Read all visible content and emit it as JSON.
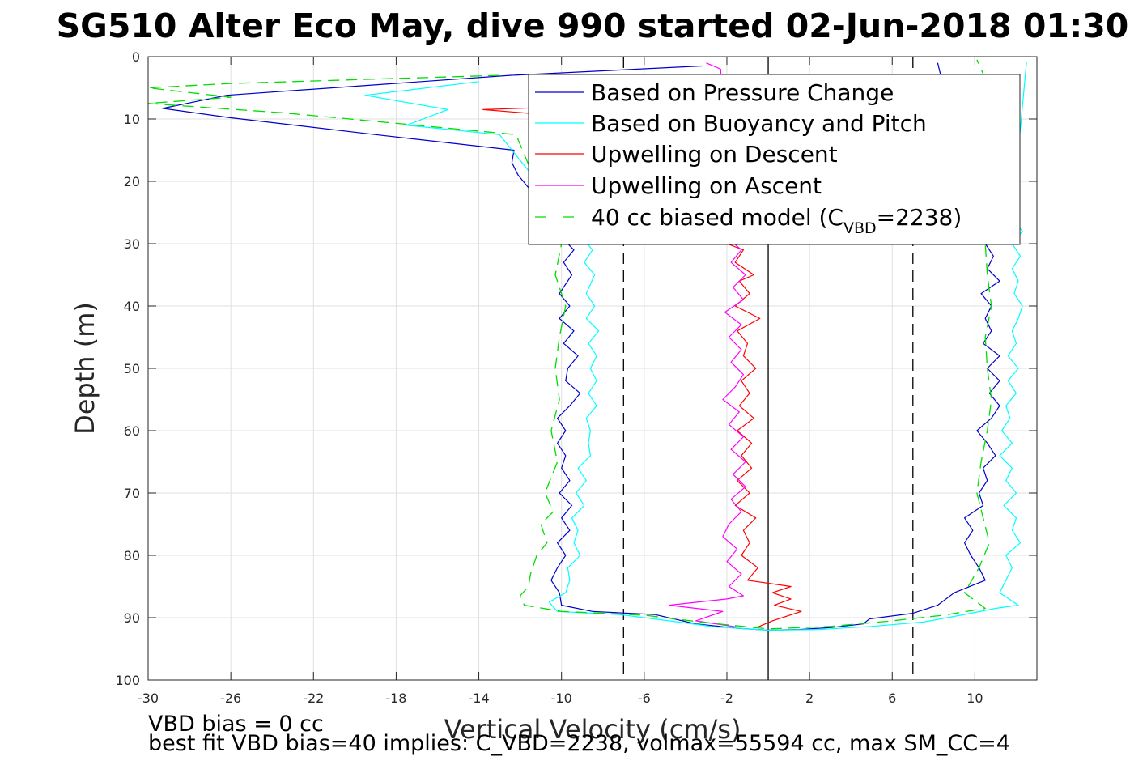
{
  "chart_data": {
    "type": "line",
    "title": "SG510 Alter Eco May, dive 990 started 02-Jun-2018 01:30",
    "xlabel": "Vertical Velocity (cm/s)",
    "ylabel": "Depth (m)",
    "xlim": [
      -30,
      13
    ],
    "ylim": [
      0,
      100
    ],
    "y_reversed": true,
    "grid": true,
    "legend_position": "top-right",
    "xticks": [
      -30,
      -26,
      -22,
      -18,
      -14,
      -10,
      -6,
      -2,
      2,
      6,
      10
    ],
    "xtick_labels": [
      "-30",
      "-26",
      "-22",
      "-18",
      "-14",
      "-10",
      "-6",
      "-2",
      "2",
      "6",
      "10"
    ],
    "yticks": [
      0,
      10,
      20,
      30,
      40,
      50,
      60,
      70,
      80,
      90,
      100
    ],
    "ytick_labels": [
      "0",
      "10",
      "20",
      "30",
      "40",
      "50",
      "60",
      "70",
      "80",
      "90",
      "100"
    ],
    "reference_lines": [
      {
        "x": 0,
        "style": "solid",
        "color": "#000000"
      },
      {
        "x": -7,
        "style": "dashed",
        "color": "#000000"
      },
      {
        "x": 7,
        "style": "dashed",
        "color": "#000000"
      }
    ],
    "series": [
      {
        "name": "Based on Pressure Change",
        "color": "#0000cc",
        "style": "solid",
        "points": [
          [
            -3.2,
            1.5
          ],
          [
            -12.5,
            3
          ],
          [
            -26.2,
            6.2
          ],
          [
            -29.3,
            8.3
          ],
          [
            -26,
            9.8
          ],
          [
            -19,
            12.5
          ],
          [
            -12.3,
            15
          ],
          [
            -12.4,
            17
          ],
          [
            -12.1,
            19
          ],
          [
            -11.6,
            21
          ],
          [
            -10,
            29
          ],
          [
            -9.4,
            31
          ],
          [
            -9.9,
            33
          ],
          [
            -9.5,
            35
          ],
          [
            -10.1,
            38
          ],
          [
            -9.6,
            40
          ],
          [
            -10.1,
            42
          ],
          [
            -9.4,
            44
          ],
          [
            -9.9,
            46
          ],
          [
            -9.2,
            48
          ],
          [
            -9.7,
            50
          ],
          [
            -9.8,
            52
          ],
          [
            -9.1,
            54
          ],
          [
            -9.6,
            56
          ],
          [
            -10.2,
            58
          ],
          [
            -9.8,
            60
          ],
          [
            -10.2,
            62
          ],
          [
            -9.8,
            64
          ],
          [
            -10,
            66
          ],
          [
            -9.6,
            68
          ],
          [
            -10.1,
            70
          ],
          [
            -9.5,
            72
          ],
          [
            -10,
            74
          ],
          [
            -9.6,
            76
          ],
          [
            -10.2,
            78
          ],
          [
            -9.8,
            80
          ],
          [
            -10.2,
            82
          ],
          [
            -10.5,
            84
          ],
          [
            -10.1,
            86
          ],
          [
            -10,
            88
          ],
          [
            -8.5,
            89
          ],
          [
            -5.5,
            89.5
          ],
          [
            -3.5,
            91
          ],
          [
            -1.5,
            91.7
          ],
          [
            0,
            92
          ],
          [
            1.5,
            91.9
          ],
          [
            3,
            91.6
          ],
          [
            4.6,
            91
          ],
          [
            4.9,
            90.2
          ],
          [
            7,
            89.3
          ],
          [
            8.2,
            88
          ],
          [
            9,
            86
          ],
          [
            10.5,
            84
          ],
          [
            10.2,
            82
          ],
          [
            9.8,
            80
          ],
          [
            9.5,
            78
          ],
          [
            9.9,
            76
          ],
          [
            9.5,
            74
          ],
          [
            10.4,
            72
          ],
          [
            10.2,
            70
          ],
          [
            10.6,
            68
          ],
          [
            10.4,
            66
          ],
          [
            11,
            64
          ],
          [
            10.6,
            62
          ],
          [
            10.1,
            60
          ],
          [
            10.8,
            58
          ],
          [
            11.2,
            56
          ],
          [
            10.7,
            54
          ],
          [
            11.2,
            52
          ],
          [
            10.6,
            50
          ],
          [
            11.2,
            48
          ],
          [
            10.4,
            46
          ],
          [
            10.8,
            44
          ],
          [
            10.5,
            42
          ],
          [
            10.8,
            40
          ],
          [
            10.3,
            38
          ],
          [
            11.2,
            36
          ],
          [
            10.6,
            34
          ],
          [
            10.9,
            32
          ],
          [
            10.5,
            30
          ],
          [
            10.2,
            28
          ],
          [
            8.2,
            1
          ]
        ]
      },
      {
        "name": "Based on Buoyancy and Pitch",
        "color": "#00ffff",
        "style": "solid",
        "points": [
          [
            -14,
            4
          ],
          [
            -19.5,
            6.2
          ],
          [
            -15.5,
            8.5
          ],
          [
            -17.5,
            11
          ],
          [
            -13,
            12.5
          ],
          [
            -9,
            29
          ],
          [
            -8.5,
            31
          ],
          [
            -8.9,
            33
          ],
          [
            -8.4,
            35
          ],
          [
            -8.8,
            38
          ],
          [
            -8.4,
            40
          ],
          [
            -8.8,
            42
          ],
          [
            -8.2,
            44
          ],
          [
            -8.7,
            46
          ],
          [
            -8.3,
            48
          ],
          [
            -8.6,
            50
          ],
          [
            -8.3,
            52
          ],
          [
            -8.7,
            54
          ],
          [
            -8.3,
            56
          ],
          [
            -8.8,
            58
          ],
          [
            -8.6,
            60
          ],
          [
            -8.7,
            62
          ],
          [
            -8.6,
            64
          ],
          [
            -9.2,
            66
          ],
          [
            -8.8,
            68
          ],
          [
            -9.3,
            70
          ],
          [
            -8.9,
            72
          ],
          [
            -9.5,
            74
          ],
          [
            -9.2,
            76
          ],
          [
            -9.4,
            78
          ],
          [
            -9.1,
            80
          ],
          [
            -9.7,
            82
          ],
          [
            -9.6,
            84
          ],
          [
            -9.8,
            86
          ],
          [
            -10.6,
            87.5
          ],
          [
            -10.2,
            89
          ],
          [
            -7.2,
            89.5
          ],
          [
            -4.8,
            90.5
          ],
          [
            -2.5,
            91.5
          ],
          [
            0,
            92
          ],
          [
            2.5,
            91.9
          ],
          [
            5,
            91.4
          ],
          [
            7.5,
            90.7
          ],
          [
            9.5,
            89.5
          ],
          [
            11,
            88.5
          ],
          [
            12.1,
            88
          ],
          [
            11.2,
            86
          ],
          [
            11.5,
            84
          ],
          [
            11.8,
            82
          ],
          [
            11.5,
            80
          ],
          [
            12.2,
            78
          ],
          [
            11.8,
            76
          ],
          [
            12,
            74
          ],
          [
            11.4,
            72
          ],
          [
            12,
            70
          ],
          [
            11.5,
            68
          ],
          [
            11.8,
            66
          ],
          [
            11.2,
            64
          ],
          [
            11.8,
            62
          ],
          [
            11.3,
            60
          ],
          [
            11.7,
            58
          ],
          [
            11.5,
            56
          ],
          [
            12,
            54
          ],
          [
            11.6,
            52
          ],
          [
            12.1,
            50
          ],
          [
            11.6,
            48
          ],
          [
            12,
            46
          ],
          [
            11.8,
            44
          ],
          [
            12.1,
            42
          ],
          [
            12.3,
            40
          ],
          [
            11.9,
            38
          ],
          [
            12.1,
            36
          ],
          [
            11.8,
            34
          ],
          [
            12.2,
            32
          ],
          [
            11.8,
            30
          ],
          [
            12.3,
            28
          ],
          [
            11.8,
            26
          ],
          [
            12.5,
            0.8
          ]
        ]
      },
      {
        "name": "Upwelling on Descent",
        "color": "#ff0000",
        "style": "solid",
        "points": [
          [
            -3.5,
            4
          ],
          [
            -5.2,
            7.5
          ],
          [
            -13.8,
            8.5
          ],
          [
            -10,
            9.5
          ],
          [
            -8.5,
            10.5
          ],
          [
            -2,
            30
          ],
          [
            -1.2,
            31
          ],
          [
            -1.6,
            33
          ],
          [
            -0.7,
            35
          ],
          [
            -1.4,
            36
          ],
          [
            -0.9,
            38
          ],
          [
            -1.6,
            40
          ],
          [
            -0.4,
            42
          ],
          [
            -1.5,
            44
          ],
          [
            -1,
            46
          ],
          [
            -1.2,
            48
          ],
          [
            -0.6,
            50
          ],
          [
            -1.3,
            52
          ],
          [
            -0.9,
            54
          ],
          [
            -1.4,
            56
          ],
          [
            -0.7,
            58
          ],
          [
            -1.5,
            60
          ],
          [
            -0.8,
            62
          ],
          [
            -1.3,
            64
          ],
          [
            -0.8,
            66
          ],
          [
            -1.5,
            68
          ],
          [
            -0.9,
            70
          ],
          [
            -1.6,
            72
          ],
          [
            -0.6,
            74
          ],
          [
            -1.2,
            76
          ],
          [
            -0.9,
            78
          ],
          [
            -1.3,
            80
          ],
          [
            -0.5,
            82
          ],
          [
            -1,
            84
          ],
          [
            1.1,
            85
          ],
          [
            0.2,
            86
          ],
          [
            1.1,
            87
          ],
          [
            0.3,
            88
          ],
          [
            1.6,
            89
          ],
          [
            0.2,
            90.5
          ],
          [
            -0.5,
            91.5
          ]
        ]
      },
      {
        "name": "Upwelling on Ascent",
        "color": "#ff00ff",
        "style": "solid",
        "points": [
          [
            -3,
            1
          ],
          [
            -2.3,
            2
          ],
          [
            -2,
            29
          ],
          [
            -1.3,
            31
          ],
          [
            -1.8,
            33
          ],
          [
            -1.1,
            35
          ],
          [
            -1.7,
            37
          ],
          [
            -1.2,
            39
          ],
          [
            -2.1,
            41
          ],
          [
            -1.3,
            43
          ],
          [
            -1.9,
            45
          ],
          [
            -1.3,
            47
          ],
          [
            -1.8,
            49
          ],
          [
            -1.2,
            51
          ],
          [
            -1.6,
            53
          ],
          [
            -2.2,
            55
          ],
          [
            -1.4,
            57
          ],
          [
            -1.9,
            59
          ],
          [
            -1.2,
            61
          ],
          [
            -1.8,
            63
          ],
          [
            -1.1,
            65
          ],
          [
            -1.7,
            67
          ],
          [
            -1.1,
            69
          ],
          [
            -1.8,
            71
          ],
          [
            -1.3,
            73
          ],
          [
            -1.9,
            75
          ],
          [
            -2.2,
            77
          ],
          [
            -1.5,
            79
          ],
          [
            -2,
            81
          ],
          [
            -1.3,
            83
          ],
          [
            -1.9,
            85
          ],
          [
            -1.2,
            86.5
          ],
          [
            -2,
            87
          ],
          [
            -4.8,
            88
          ],
          [
            -2.2,
            89
          ],
          [
            -3.5,
            90.5
          ],
          [
            -1.5,
            91.5
          ]
        ]
      },
      {
        "name": "40 cc biased model (C_VBD=2238)",
        "color": "#00dd00",
        "style": "dashed",
        "points": [
          [
            -13,
            3
          ],
          [
            -26,
            4.3
          ],
          [
            -30,
            5
          ],
          [
            -26,
            6.5
          ],
          [
            -30,
            7.5
          ],
          [
            -23.5,
            9
          ],
          [
            -17,
            11
          ],
          [
            -12.2,
            12.5
          ],
          [
            -10,
            30
          ],
          [
            -10.3,
            35
          ],
          [
            -9.8,
            40
          ],
          [
            -10.1,
            45
          ],
          [
            -10.3,
            50
          ],
          [
            -10.1,
            55
          ],
          [
            -10.5,
            60
          ],
          [
            -10.2,
            65
          ],
          [
            -10.8,
            70
          ],
          [
            -10.4,
            73
          ],
          [
            -11,
            75
          ],
          [
            -10.7,
            78
          ],
          [
            -11.2,
            80
          ],
          [
            -11.5,
            83
          ],
          [
            -11.6,
            85
          ],
          [
            -12,
            86.5
          ],
          [
            -11.8,
            88
          ],
          [
            -10,
            89
          ],
          [
            -6,
            89.6
          ],
          [
            -3,
            90.8
          ],
          [
            0,
            91.8
          ],
          [
            3,
            91.4
          ],
          [
            6,
            90.5
          ],
          [
            8.5,
            89.6
          ],
          [
            10.5,
            88.5
          ],
          [
            9.5,
            86
          ],
          [
            10.2,
            82
          ],
          [
            10.7,
            78
          ],
          [
            10.4,
            74
          ],
          [
            10.1,
            70
          ],
          [
            10.3,
            65
          ],
          [
            10.6,
            60
          ],
          [
            10.8,
            55
          ],
          [
            10.6,
            50
          ],
          [
            10.5,
            45
          ],
          [
            10.8,
            40
          ],
          [
            10.6,
            35
          ],
          [
            10.5,
            30
          ],
          [
            10.3,
            20
          ],
          [
            10.7,
            5
          ],
          [
            10.1,
            0.5
          ]
        ]
      }
    ],
    "legend_entries": [
      {
        "label": "Based on Pressure Change"
      },
      {
        "label": "Based on Buoyancy and Pitch"
      },
      {
        "label": "Upwelling on Descent"
      },
      {
        "label": "Upwelling on Ascent"
      },
      {
        "label_main": "40 cc biased model (C",
        "label_sub": "VBD",
        "label_end": "=2238)"
      }
    ]
  },
  "notes": {
    "vbd_bias": "VBD bias = 0 cc",
    "best_fit": "best fit VBD bias=40 implies: C_VBD=2238, volmax=55594 cc, max SM_CC=4"
  }
}
